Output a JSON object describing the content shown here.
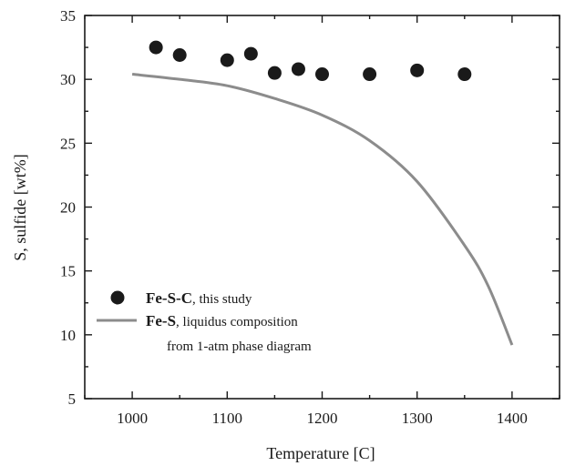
{
  "chart_data": {
    "type": "scatter",
    "xlabel": "Temperature [C]",
    "ylabel": "S, sulfide [wt%]",
    "xlim": [
      950,
      1450
    ],
    "ylim": [
      5,
      35
    ],
    "x_ticks": [
      "1000",
      "1100",
      "1200",
      "1300",
      "1400"
    ],
    "y_ticks": [
      "5",
      "10",
      "15",
      "20",
      "25",
      "30",
      "35"
    ],
    "grid": false,
    "legend_placement": "lower-left",
    "series": [
      {
        "name": "Fe-S-C",
        "name_suffix": ", this study",
        "kind": "scatter",
        "color": "#1a1a1a",
        "points": [
          {
            "x": 1025,
            "y": 32.5
          },
          {
            "x": 1050,
            "y": 31.9
          },
          {
            "x": 1100,
            "y": 31.5
          },
          {
            "x": 1125,
            "y": 32.0
          },
          {
            "x": 1150,
            "y": 30.5
          },
          {
            "x": 1175,
            "y": 30.8
          },
          {
            "x": 1200,
            "y": 30.4
          },
          {
            "x": 1250,
            "y": 30.4
          },
          {
            "x": 1300,
            "y": 30.7
          },
          {
            "x": 1350,
            "y": 30.4
          }
        ]
      },
      {
        "name": "Fe-S",
        "name_suffix": ", liquidus composition",
        "name_line2": "from 1-atm phase diagram",
        "kind": "line",
        "color": "#8c8c8c",
        "points": [
          {
            "x": 1000,
            "y": 30.4
          },
          {
            "x": 1050,
            "y": 30.0
          },
          {
            "x": 1100,
            "y": 29.5
          },
          {
            "x": 1150,
            "y": 28.5
          },
          {
            "x": 1200,
            "y": 27.2
          },
          {
            "x": 1250,
            "y": 25.2
          },
          {
            "x": 1300,
            "y": 22.0
          },
          {
            "x": 1350,
            "y": 17.0
          },
          {
            "x": 1375,
            "y": 13.8
          },
          {
            "x": 1400,
            "y": 9.2
          }
        ]
      }
    ]
  }
}
